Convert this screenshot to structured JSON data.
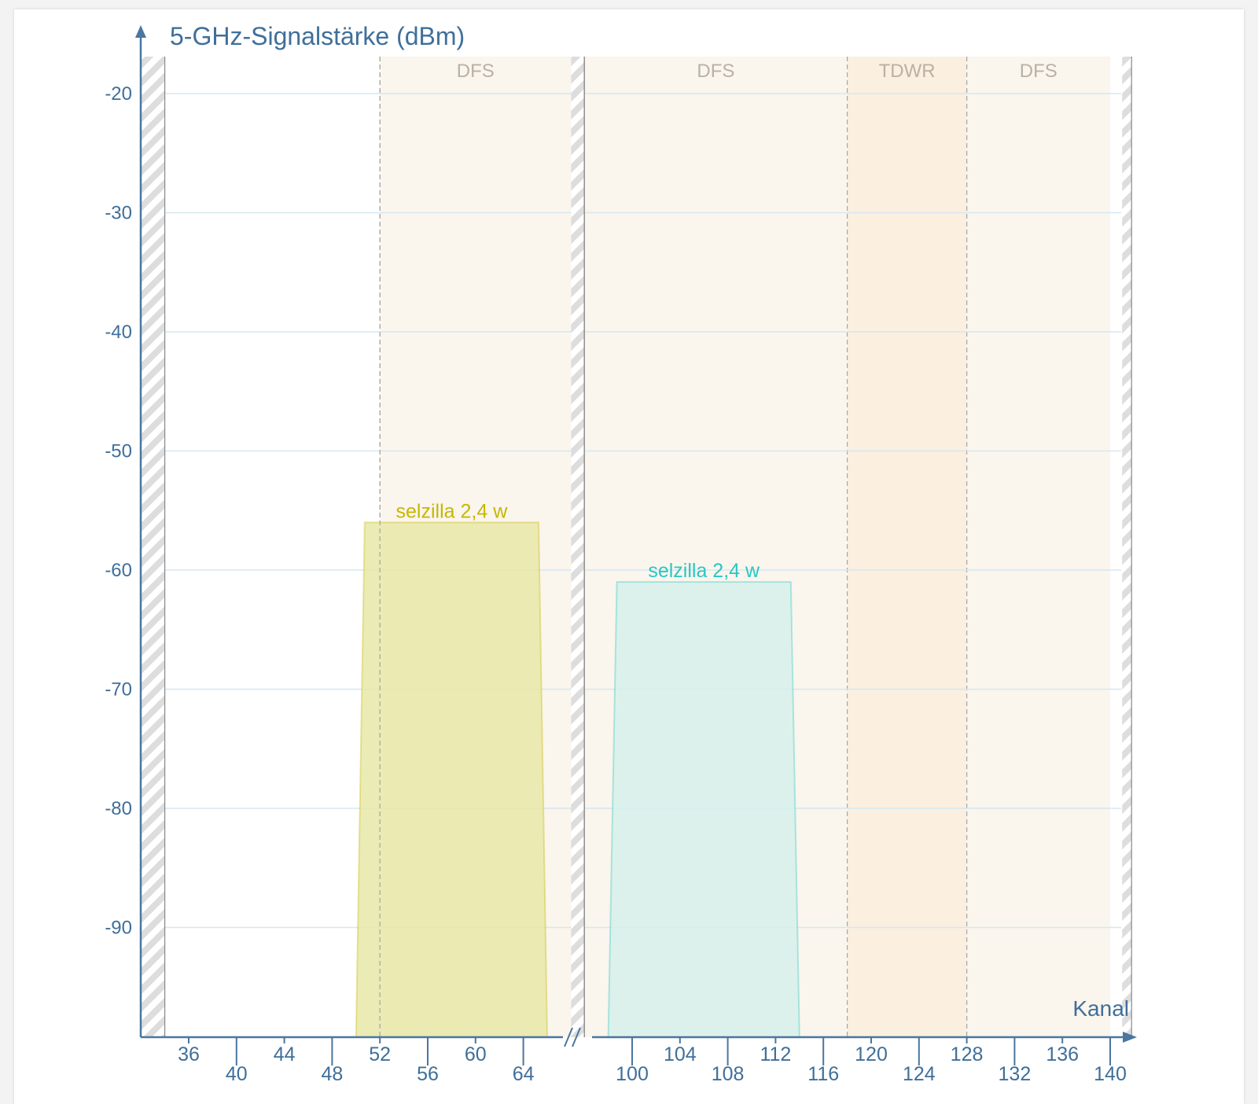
{
  "chart_data": {
    "type": "area",
    "title": "5-GHz-Signalstärke (dBm)",
    "xlabel": "Kanal",
    "ylabel": "5-GHz-Signalstärke (dBm)",
    "ylim": [
      -100,
      -18
    ],
    "yticks": [
      "-20",
      "-30",
      "-40",
      "-50",
      "-60",
      "-70",
      "-80",
      "-90"
    ],
    "grid": true,
    "x_segments": [
      {
        "xlim": [
          32,
          68
        ],
        "ticks_upper": [
          "36",
          "44",
          "52",
          "60"
        ],
        "ticks_lower": [
          "40",
          "48",
          "56",
          "64"
        ]
      },
      {
        "xlim": [
          96,
          142
        ],
        "ticks_upper": [
          "104",
          "112",
          "120",
          "128",
          "136"
        ],
        "ticks_lower": [
          "100",
          "108",
          "116",
          "124",
          "132",
          "140"
        ]
      }
    ],
    "axis_break": true,
    "bands": [
      {
        "label": "DFS",
        "x": [
          52,
          68
        ]
      },
      {
        "label": "DFS",
        "x": [
          96,
          118
        ]
      },
      {
        "label": "TDWR",
        "x": [
          118,
          128
        ]
      },
      {
        "label": "DFS",
        "x": [
          128,
          140
        ]
      }
    ],
    "series": [
      {
        "name": "selzilla 2,4 w",
        "color": "#c5b800",
        "channels": [
          50,
          66
        ],
        "level": -56
      },
      {
        "name": "selzilla 2,4 w",
        "color": "#2ac7c2",
        "channels": [
          98,
          114
        ],
        "level": -61
      }
    ],
    "colors": {
      "axis": "#4a76a0",
      "grid": "#d6e7f1",
      "dfs_band": "#faf5ed",
      "tdwr_band": "#fbefdf",
      "series1_fill": "#e8e8a8",
      "series2_fill": "#d6f0ea"
    }
  }
}
